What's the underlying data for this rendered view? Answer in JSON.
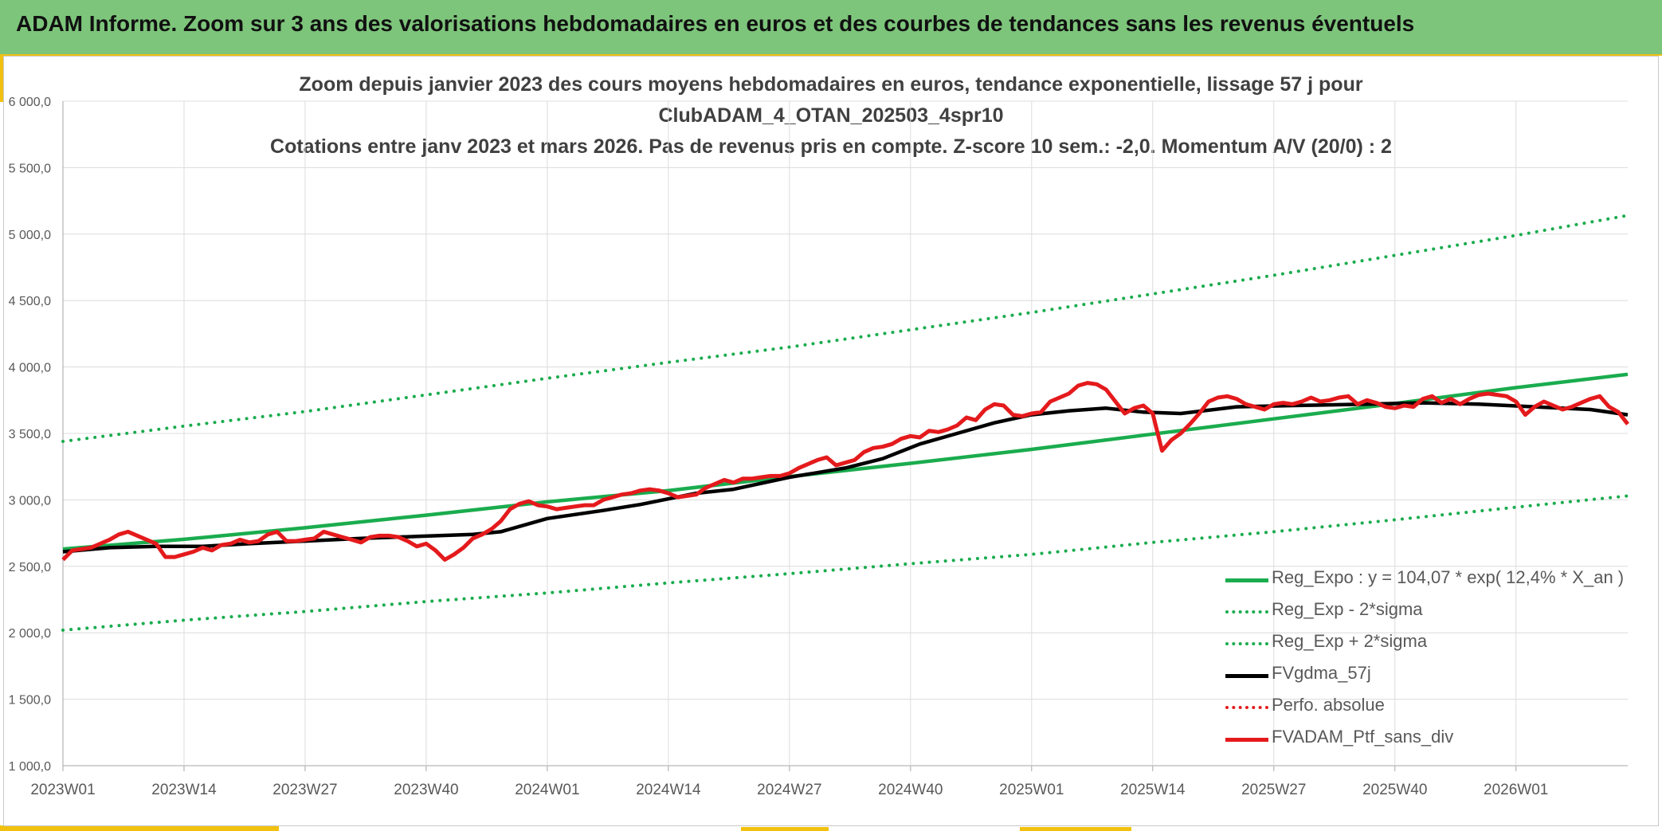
{
  "header": {
    "title": "ADAM Informe. Zoom sur 3 ans des valorisations hebdomadaires en euros et des courbes de tendances sans les revenus éventuels"
  },
  "colors": {
    "header_bg": "#7dc57b",
    "accent": "#f2c10f",
    "reg_expo": "#1aac4e",
    "fvgdma": "#000000",
    "fvadam": "#e41a1c",
    "perfo": "#e41a1c",
    "grid": "#dcdcdc"
  },
  "chart_data": {
    "type": "line",
    "title_lines": [
      "Zoom depuis janvier 2023 des cours moyens hebdomadaires en euros, tendance exponentielle, lissage 57 j pour",
      "ClubADAM_4_OTAN_202503_4spr10",
      "Cotations entre janv 2023 et mars 2026. Pas de revenus pris en compte. Z-score 10 sem.: -2,0. Momentum A/V (20/0) : 2"
    ],
    "ylim": [
      1000,
      6000
    ],
    "yticks": [
      "1 000,0",
      "1 500,0",
      "2 000,0",
      "2 500,0",
      "3 000,0",
      "3 500,0",
      "4 000,0",
      "4 500,0",
      "5 000,0",
      "5 500,0",
      "6 000,0"
    ],
    "xlim": [
      0,
      168
    ],
    "x_ticks": [
      {
        "label": "2023W01",
        "week": 0
      },
      {
        "label": "2023W14",
        "week": 13
      },
      {
        "label": "2023W27",
        "week": 26
      },
      {
        "label": "2023W40",
        "week": 39
      },
      {
        "label": "2024W01",
        "week": 52
      },
      {
        "label": "2024W14",
        "week": 65
      },
      {
        "label": "2024W27",
        "week": 78
      },
      {
        "label": "2024W40",
        "week": 91
      },
      {
        "label": "2025W01",
        "week": 104
      },
      {
        "label": "2025W14",
        "week": 117
      },
      {
        "label": "2025W27",
        "week": 130
      },
      {
        "label": "2025W40",
        "week": 143
      },
      {
        "label": "2026W01",
        "week": 156
      }
    ],
    "series": [
      {
        "name": "Reg_Expo : y = 104,07 * exp( 12,4% *  X_an )",
        "style": "solid",
        "color": "#1aac4e",
        "points": [
          [
            0,
            2630
          ],
          [
            13,
            2703
          ],
          [
            26,
            2790
          ],
          [
            39,
            2885
          ],
          [
            52,
            2985
          ],
          [
            65,
            3070
          ],
          [
            78,
            3175
          ],
          [
            91,
            3275
          ],
          [
            104,
            3380
          ],
          [
            117,
            3495
          ],
          [
            130,
            3610
          ],
          [
            143,
            3725
          ],
          [
            156,
            3845
          ],
          [
            168,
            3945
          ]
        ]
      },
      {
        "name": "Reg_Exp - 2*sigma",
        "style": "dotted",
        "color": "#1aac4e",
        "points": [
          [
            0,
            2020
          ],
          [
            13,
            2095
          ],
          [
            26,
            2160
          ],
          [
            39,
            2235
          ],
          [
            52,
            2300
          ],
          [
            65,
            2375
          ],
          [
            78,
            2445
          ],
          [
            91,
            2520
          ],
          [
            104,
            2590
          ],
          [
            117,
            2680
          ],
          [
            130,
            2760
          ],
          [
            143,
            2850
          ],
          [
            156,
            2945
          ],
          [
            168,
            3030
          ]
        ]
      },
      {
        "name": "Reg_Exp + 2*sigma",
        "style": "dotted",
        "color": "#1aac4e",
        "points": [
          [
            0,
            3440
          ],
          [
            13,
            3555
          ],
          [
            26,
            3665
          ],
          [
            39,
            3790
          ],
          [
            52,
            3915
          ],
          [
            65,
            4035
          ],
          [
            78,
            4150
          ],
          [
            91,
            4280
          ],
          [
            104,
            4410
          ],
          [
            117,
            4550
          ],
          [
            130,
            4690
          ],
          [
            143,
            4840
          ],
          [
            156,
            4990
          ],
          [
            168,
            5140
          ]
        ]
      },
      {
        "name": "FVgdma_57j",
        "style": "solid",
        "color": "#000000",
        "points": [
          [
            0,
            2610
          ],
          [
            5,
            2640
          ],
          [
            10,
            2650
          ],
          [
            15,
            2650
          ],
          [
            20,
            2670
          ],
          [
            26,
            2690
          ],
          [
            32,
            2710
          ],
          [
            38,
            2725
          ],
          [
            44,
            2740
          ],
          [
            47,
            2760
          ],
          [
            52,
            2860
          ],
          [
            58,
            2920
          ],
          [
            62,
            2965
          ],
          [
            68,
            3050
          ],
          [
            72,
            3080
          ],
          [
            78,
            3170
          ],
          [
            84,
            3240
          ],
          [
            88,
            3310
          ],
          [
            92,
            3420
          ],
          [
            96,
            3500
          ],
          [
            100,
            3580
          ],
          [
            104,
            3640
          ],
          [
            108,
            3670
          ],
          [
            112,
            3690
          ],
          [
            116,
            3660
          ],
          [
            120,
            3650
          ],
          [
            126,
            3700
          ],
          [
            132,
            3710
          ],
          [
            140,
            3720
          ],
          [
            146,
            3730
          ],
          [
            152,
            3720
          ],
          [
            158,
            3700
          ],
          [
            164,
            3680
          ],
          [
            168,
            3640
          ]
        ]
      },
      {
        "name": "Perfo. absolue",
        "style": "dotted",
        "color": "#e41a1c",
        "points": []
      },
      {
        "name": "FVADAM_Ptf_sans_div",
        "style": "solid",
        "color": "#e41a1c",
        "points": [
          [
            0,
            2550
          ],
          [
            1,
            2620
          ],
          [
            2,
            2630
          ],
          [
            3,
            2640
          ],
          [
            4,
            2670
          ],
          [
            5,
            2700
          ],
          [
            6,
            2740
          ],
          [
            7,
            2760
          ],
          [
            8,
            2730
          ],
          [
            9,
            2700
          ],
          [
            10,
            2670
          ],
          [
            11,
            2570
          ],
          [
            12,
            2570
          ],
          [
            13,
            2590
          ],
          [
            14,
            2610
          ],
          [
            15,
            2640
          ],
          [
            16,
            2620
          ],
          [
            17,
            2660
          ],
          [
            18,
            2670
          ],
          [
            19,
            2700
          ],
          [
            20,
            2680
          ],
          [
            21,
            2690
          ],
          [
            22,
            2740
          ],
          [
            23,
            2760
          ],
          [
            24,
            2690
          ],
          [
            25,
            2690
          ],
          [
            26,
            2700
          ],
          [
            27,
            2710
          ],
          [
            28,
            2760
          ],
          [
            29,
            2740
          ],
          [
            30,
            2720
          ],
          [
            31,
            2700
          ],
          [
            32,
            2680
          ],
          [
            33,
            2720
          ],
          [
            34,
            2730
          ],
          [
            35,
            2730
          ],
          [
            36,
            2720
          ],
          [
            37,
            2690
          ],
          [
            38,
            2650
          ],
          [
            39,
            2670
          ],
          [
            40,
            2620
          ],
          [
            41,
            2550
          ],
          [
            42,
            2590
          ],
          [
            43,
            2640
          ],
          [
            44,
            2710
          ],
          [
            45,
            2740
          ],
          [
            46,
            2780
          ],
          [
            47,
            2840
          ],
          [
            48,
            2930
          ],
          [
            49,
            2970
          ],
          [
            50,
            2990
          ],
          [
            51,
            2960
          ],
          [
            52,
            2950
          ],
          [
            53,
            2930
          ],
          [
            54,
            2940
          ],
          [
            55,
            2950
          ],
          [
            56,
            2960
          ],
          [
            57,
            2960
          ],
          [
            58,
            3000
          ],
          [
            59,
            3020
          ],
          [
            60,
            3040
          ],
          [
            61,
            3050
          ],
          [
            62,
            3070
          ],
          [
            63,
            3080
          ],
          [
            64,
            3070
          ],
          [
            65,
            3050
          ],
          [
            66,
            3020
          ],
          [
            67,
            3030
          ],
          [
            68,
            3040
          ],
          [
            69,
            3090
          ],
          [
            70,
            3120
          ],
          [
            71,
            3150
          ],
          [
            72,
            3130
          ],
          [
            73,
            3160
          ],
          [
            74,
            3160
          ],
          [
            75,
            3170
          ],
          [
            76,
            3180
          ],
          [
            77,
            3180
          ],
          [
            78,
            3200
          ],
          [
            79,
            3240
          ],
          [
            80,
            3270
          ],
          [
            81,
            3300
          ],
          [
            82,
            3320
          ],
          [
            83,
            3260
          ],
          [
            84,
            3280
          ],
          [
            85,
            3300
          ],
          [
            86,
            3360
          ],
          [
            87,
            3390
          ],
          [
            88,
            3400
          ],
          [
            89,
            3420
          ],
          [
            90,
            3460
          ],
          [
            91,
            3480
          ],
          [
            92,
            3470
          ],
          [
            93,
            3520
          ],
          [
            94,
            3510
          ],
          [
            95,
            3530
          ],
          [
            96,
            3560
          ],
          [
            97,
            3620
          ],
          [
            98,
            3600
          ],
          [
            99,
            3680
          ],
          [
            100,
            3720
          ],
          [
            101,
            3710
          ],
          [
            102,
            3640
          ],
          [
            103,
            3630
          ],
          [
            104,
            3650
          ],
          [
            105,
            3660
          ],
          [
            106,
            3740
          ],
          [
            107,
            3770
          ],
          [
            108,
            3800
          ],
          [
            109,
            3860
          ],
          [
            110,
            3880
          ],
          [
            111,
            3870
          ],
          [
            112,
            3830
          ],
          [
            113,
            3740
          ],
          [
            114,
            3650
          ],
          [
            115,
            3690
          ],
          [
            116,
            3710
          ],
          [
            117,
            3650
          ],
          [
            118,
            3370
          ],
          [
            119,
            3450
          ],
          [
            120,
            3500
          ],
          [
            121,
            3570
          ],
          [
            122,
            3650
          ],
          [
            123,
            3740
          ],
          [
            124,
            3770
          ],
          [
            125,
            3780
          ],
          [
            126,
            3760
          ],
          [
            127,
            3720
          ],
          [
            128,
            3700
          ],
          [
            129,
            3680
          ],
          [
            130,
            3720
          ],
          [
            131,
            3730
          ],
          [
            132,
            3720
          ],
          [
            133,
            3740
          ],
          [
            134,
            3770
          ],
          [
            135,
            3740
          ],
          [
            136,
            3750
          ],
          [
            137,
            3770
          ],
          [
            138,
            3780
          ],
          [
            139,
            3720
          ],
          [
            140,
            3750
          ],
          [
            141,
            3730
          ],
          [
            142,
            3700
          ],
          [
            143,
            3690
          ],
          [
            144,
            3710
          ],
          [
            145,
            3700
          ],
          [
            146,
            3760
          ],
          [
            147,
            3780
          ],
          [
            148,
            3730
          ],
          [
            149,
            3760
          ],
          [
            150,
            3720
          ],
          [
            151,
            3760
          ],
          [
            152,
            3790
          ],
          [
            153,
            3800
          ],
          [
            154,
            3790
          ],
          [
            155,
            3780
          ],
          [
            156,
            3740
          ],
          [
            157,
            3640
          ],
          [
            158,
            3700
          ],
          [
            159,
            3740
          ],
          [
            160,
            3710
          ],
          [
            161,
            3680
          ],
          [
            162,
            3700
          ],
          [
            163,
            3730
          ],
          [
            164,
            3760
          ],
          [
            165,
            3780
          ],
          [
            166,
            3700
          ],
          [
            167,
            3660
          ],
          [
            168,
            3570
          ]
        ]
      }
    ]
  }
}
